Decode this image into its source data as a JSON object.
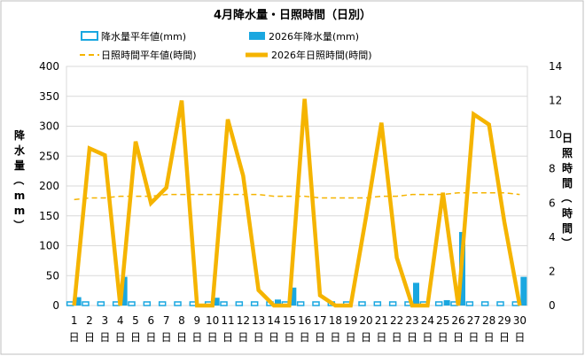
{
  "chart_data": {
    "type": "bar",
    "title": "4月降水量・日照時間（日別）",
    "x_labels": [
      "1",
      "2",
      "3",
      "4",
      "5",
      "6",
      "7",
      "8",
      "9",
      "10",
      "11",
      "12",
      "13",
      "14",
      "15",
      "16",
      "17",
      "18",
      "19",
      "20",
      "21",
      "22",
      "23",
      "24",
      "25",
      "26",
      "27",
      "28",
      "29",
      "30"
    ],
    "x_unit": "日",
    "y_left": {
      "label": "降水量（mm）",
      "min": 0,
      "max": 400,
      "ticks": [
        0,
        50,
        100,
        150,
        200,
        250,
        300,
        350,
        400
      ]
    },
    "y_right": {
      "label": "日照時間（時間）",
      "min": 0,
      "max": 14,
      "ticks": [
        0,
        2,
        4,
        6,
        8,
        10,
        12,
        14
      ]
    },
    "grid": "horizontal",
    "legend": "top",
    "series": [
      {
        "name": "降水量平年値(mm)",
        "kind": "bar-outline",
        "axis": "left",
        "color": "#1aa7e0",
        "values": [
          6,
          6,
          6,
          6,
          6,
          6,
          6,
          6,
          6,
          6,
          6,
          6,
          6,
          6,
          6,
          6,
          6,
          6,
          6,
          6,
          6,
          6,
          6,
          6,
          6,
          6,
          6,
          6,
          6,
          6
        ]
      },
      {
        "name": "2026年降水量(mm)",
        "kind": "bar",
        "axis": "left",
        "color": "#1aa7e0",
        "values": [
          14,
          0,
          0,
          48,
          0,
          0,
          0,
          0,
          0,
          13,
          0,
          0,
          0,
          10,
          30,
          0,
          0,
          0,
          0,
          0,
          0,
          0,
          38,
          0,
          9,
          123,
          0,
          0,
          0,
          48
        ]
      },
      {
        "name": "日照時間平年値(時間)",
        "kind": "line-dashed",
        "axis": "right",
        "color": "#f5b400",
        "values": [
          6.2,
          6.3,
          6.3,
          6.4,
          6.4,
          6.4,
          6.5,
          6.5,
          6.5,
          6.5,
          6.5,
          6.5,
          6.5,
          6.4,
          6.4,
          6.4,
          6.3,
          6.3,
          6.3,
          6.3,
          6.4,
          6.4,
          6.5,
          6.5,
          6.5,
          6.6,
          6.6,
          6.6,
          6.6,
          6.5
        ]
      },
      {
        "name": "2026年日照時間(時間)",
        "kind": "line",
        "axis": "right",
        "color": "#f5b400",
        "values": [
          0,
          9.2,
          8.8,
          0,
          9.6,
          6.0,
          6.9,
          12.0,
          0,
          0,
          10.9,
          7.6,
          0.9,
          0,
          0,
          12.1,
          0.6,
          0,
          0,
          5.2,
          10.7,
          2.8,
          0,
          0,
          6.6,
          0,
          11.2,
          10.6,
          4.9,
          0
        ]
      }
    ]
  }
}
